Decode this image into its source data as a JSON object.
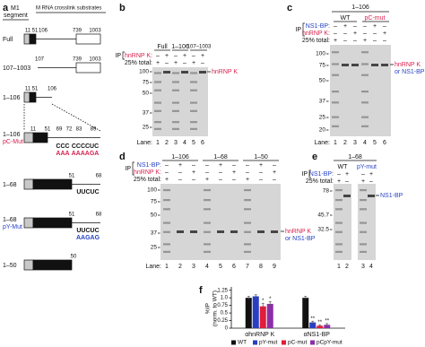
{
  "panel_a": {
    "label": "a",
    "row_header": [
      "M1",
      "segment"
    ],
    "col_header": "M RNA crosslink substrates",
    "rows": [
      {
        "name": "Full",
        "positions": [
          "11",
          "51",
          "106",
          "739",
          "1003"
        ]
      },
      {
        "name": "107–1003",
        "positions": [
          "107",
          "739",
          "1003"
        ]
      },
      {
        "name": "1–106",
        "positions": [
          "11",
          "51",
          "106"
        ]
      },
      {
        "name": "1–106",
        "mutant": "pC-Mut",
        "positions": [
          "11",
          "51",
          "69",
          "72",
          "83",
          "89"
        ],
        "wt_seq": [
          "CCC",
          "CCCCUC"
        ],
        "mut_seq": [
          "AAA",
          "AAAAGA"
        ]
      },
      {
        "name": "1–68",
        "positions": [
          "51",
          "68"
        ],
        "wt_seq": [
          "UUCUC"
        ]
      },
      {
        "name": "1–68",
        "mutant": "pY-Mut",
        "positions": [
          "51",
          "68"
        ],
        "wt_seq": [
          "UUCUC"
        ],
        "mut_seq": [
          "AAGAG"
        ]
      },
      {
        "name": "1–50",
        "positions": [
          "50"
        ]
      }
    ]
  },
  "panel_b": {
    "label": "b",
    "headers": [
      "Full",
      "1–106",
      "107–1003"
    ],
    "ip": "IP",
    "rows": [
      {
        "name": "hnRNP K:",
        "signs": [
          "–",
          "+",
          "–",
          "+",
          "–",
          "+"
        ]
      },
      {
        "name": "25% total:",
        "signs": [
          "+",
          "–",
          "+",
          "–",
          "+",
          "–"
        ]
      }
    ],
    "markers": [
      100,
      75,
      50,
      37,
      25
    ],
    "band_label": [
      "hnRNP K"
    ],
    "lane_title": "Lane:",
    "lanes": [
      1,
      2,
      3,
      4,
      5,
      6
    ]
  },
  "panel_c": {
    "label": "c",
    "headers": [
      "1–106",
      "WT",
      "pC-mut"
    ],
    "ip": "IP",
    "rows": [
      {
        "name": "NS1-BP:",
        "signs": [
          "–",
          "+",
          "–",
          "–",
          "+",
          "–"
        ]
      },
      {
        "name": "hnRNP K:",
        "signs": [
          "–",
          "–",
          "+",
          "–",
          "–",
          "+"
        ]
      },
      {
        "name": "25% total:",
        "signs": [
          "+",
          "–",
          "–",
          "+",
          "–",
          "–"
        ]
      }
    ],
    "markers": [
      100,
      75,
      50,
      37,
      25,
      20
    ],
    "band_label": [
      "hnRNP K",
      "or NS1-BP"
    ],
    "lane_title": "Lane:",
    "lanes": [
      1,
      2,
      3,
      4,
      5,
      6
    ]
  },
  "panel_d": {
    "label": "d",
    "headers": [
      "1–106",
      "1–68",
      "1–50"
    ],
    "ip": "IP",
    "rows": [
      {
        "name": "NS1-BP:",
        "signs": [
          "–",
          "+",
          "–",
          "–",
          "+",
          "–",
          "–",
          "+",
          "–"
        ]
      },
      {
        "name": "hnRNP K:",
        "signs": [
          "–",
          "–",
          "+",
          "–",
          "–",
          "+",
          "–",
          "–",
          "+"
        ]
      },
      {
        "name": "25% total:",
        "signs": [
          "+",
          "–",
          "–",
          "+",
          "–",
          "–",
          "+",
          "–",
          "–"
        ]
      }
    ],
    "markers": [
      100,
      75,
      50,
      37,
      25
    ],
    "band_label": [
      "hnRNP K",
      "or NS1-BP"
    ],
    "lane_title": "Lane:",
    "lanes": [
      1,
      2,
      3,
      4,
      5,
      6,
      7,
      8,
      9
    ]
  },
  "panel_e": {
    "label": "e",
    "headers": [
      "1–68",
      "WT",
      "pY-mut"
    ],
    "ip": "IP",
    "rows": [
      {
        "name": "NS1-BP:",
        "signs": [
          "–",
          "+",
          "–",
          "+"
        ]
      },
      {
        "name": "25% total:",
        "signs": [
          "+",
          "–",
          "+",
          "–"
        ]
      }
    ],
    "markers": [
      78,
      45.7,
      32.5
    ],
    "band_label": [
      "NS1-BP"
    ],
    "lanes": [
      1,
      2,
      3,
      4
    ]
  },
  "chart_data": {
    "type": "bar",
    "panel_label": "f",
    "y_label": [
      "%IP",
      "(norm. to WT)"
    ],
    "categories": [
      "αhnRNP K",
      "αNS1-BP"
    ],
    "series": [
      {
        "name": "WT",
        "color": "#111111",
        "values": [
          1.0,
          1.0
        ],
        "errors": [
          0.05,
          0.05
        ],
        "significance": [
          null,
          null
        ]
      },
      {
        "name": "pY-mut",
        "color": "#2a3fc0",
        "values": [
          1.05,
          0.19
        ],
        "errors": [
          0.05,
          0.04
        ],
        "significance": [
          null,
          "**"
        ]
      },
      {
        "name": "pC-mut",
        "color": "#e21c3a",
        "values": [
          0.72,
          0.08
        ],
        "errors": [
          0.1,
          0.03
        ],
        "significance": [
          "*",
          "**"
        ]
      },
      {
        "name": "pCpY-mut",
        "color": "#8a2fa8",
        "values": [
          0.8,
          0.11
        ],
        "errors": [
          0.07,
          0.04
        ],
        "significance": [
          "*",
          "**"
        ]
      }
    ],
    "ylim": [
      0,
      1.3
    ],
    "yticks": [
      0,
      0.25,
      0.5,
      0.75,
      {
        "value": 1,
        "label": "1.0"
      },
      1.25
    ]
  }
}
